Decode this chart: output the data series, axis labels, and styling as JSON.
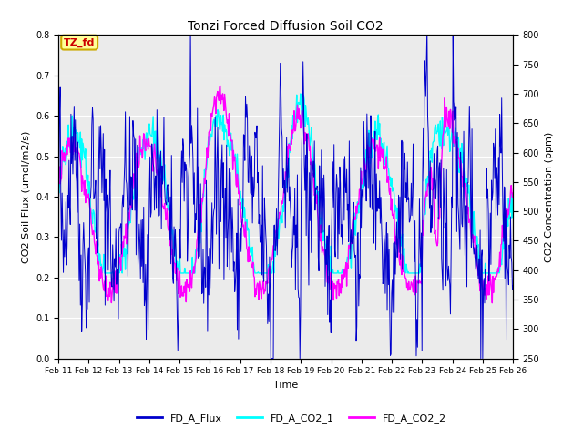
{
  "title": "Tonzi Forced Diffusion Soil CO2",
  "xlabel": "Time",
  "ylabel_left": "CO2 Soil Flux (umol/m2/s)",
  "ylabel_right": "CO2 Concentration (ppm)",
  "ylim_left": [
    0.0,
    0.8
  ],
  "ylim_right": [
    250,
    800
  ],
  "yticks_left": [
    0.0,
    0.1,
    0.2,
    0.3,
    0.4,
    0.5,
    0.6,
    0.7,
    0.8
  ],
  "yticks_right": [
    250,
    300,
    350,
    400,
    450,
    500,
    550,
    600,
    650,
    700,
    750,
    800
  ],
  "xtick_labels": [
    "Feb 11",
    "Feb 12",
    "Feb 13",
    "Feb 14",
    "Feb 15",
    "Feb 16",
    "Feb 17",
    "Feb 18",
    "Feb 19",
    "Feb 20",
    "Feb 21",
    "Feb 22",
    "Feb 23",
    "Feb 24",
    "Feb 25",
    "Feb 26"
  ],
  "flux_color": "#0000CC",
  "co2_1_color": "#00FFFF",
  "co2_2_color": "#FF00FF",
  "legend_labels": [
    "FD_A_Flux",
    "FD_A_CO2_1",
    "FD_A_CO2_2"
  ],
  "annotation_text": "TZ_fd",
  "annotation_color": "#CC0000",
  "annotation_bg": "#FFFF99",
  "annotation_border": "#CCAA00",
  "bg_color": "#EBEBEB",
  "grid_color": "#FFFFFF",
  "n_points": 720,
  "seed": 42
}
